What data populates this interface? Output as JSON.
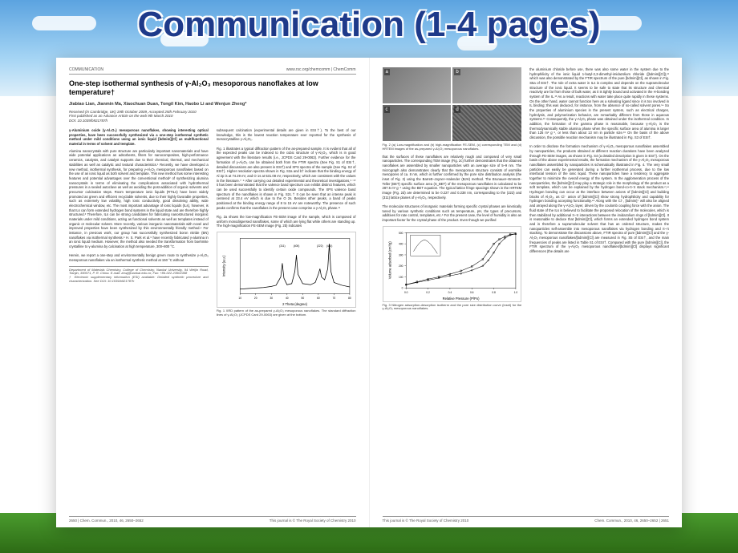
{
  "slide_title": "Communication (1-4 pages)",
  "header": {
    "left": "COMMUNICATION",
    "right": "www.rsc.org/chemcomm | ChemComm"
  },
  "paper": {
    "title": "One-step isothermal synthesis of γ-Al₂O₃ mesoporous nanoflakes at low temperature†",
    "authors": "Jiabiao Lian, Jianmin Ma, Xiaochuan Duan, Tongil Kim, Haobo Li and Wenjun Zheng*",
    "received": "Received (in Cambridge, UK) 19th October 2009, Accepted 25th February 2010\nFirst published as an Advance Article on the web 9th March 2010\nDOI: 10.1039/b921787h",
    "abstract": "γ-Aluminium oxide (γ-Al₂O₃) mesoporous nanoflakes, showing interesting optical properties, have been successfully synthesized via a one-step isothermal synthetic method under mild conditions using an ionic liquid [bdmim][Cl] as multifunctional material in terms of solvent and template.",
    "body_left_col1": "Alumina nanocrystals with pure structure are particularly important nanomaterials and have wide potential applications as adsorbents, filters for nanocomposites, high-performance ceramics, catalysts, and catalyst supports due to their chemical, thermal, and mechanical stabilities as well as catalytic and textural characteristics.¹ Recently, we have developed a new method, isothermal synthesis, for preparing γ-Al₂O₃ mesoporous nanoflakes based on the use of an ionic liquid as both solvent and template. This new method has some interesting features and potential advantages over the conventional method² of synthesizing alumina nanocrystals in terms of eliminating the complications associated with hydrothermal pressures in a sealed autoclave as well as avoiding the post-addition of organic solvents and precursor calcination steps. Room temperature ionic liquids (RTILs) have been widely promoted as green and efficient recyclable solvents, due to their highly favorable properties, such as extremely low volatility, high ionic conductivity, good dissolving ability, wide electrochemical window, etc. The most important advantage of ionic liquids (ILs), however, is that ILs can form extended hydrogen bond systems in the liquid state and are therefore highly structured.³ Therefore, ILs can be strong candidates for fabricating nanostructured inorganic materials under mild conditions, acting as functional solvents as well as templates instead of organic or molecular solvent. More recently, various inorganic nanomaterials with novel and improved properties have been synthesized by this environmentally friendly method.⁴ For instance, in previous work, our group has successfully synthesized boron nitride (BN) nanoflakes via isothermal synthesis.⁵ H. S. Park et al.⁶ have recently fabricated γ-alumina in an ionic liquid medium. However, the method also needed the transformation from boehmite crystalline to γ-alumina by calcination at high temperature, 300–800 °C.\n\nHerein, we report a one-step and environmentally benign green route to synthesize γ-Al₂O₃ mesoporous nanoflakes via an isothermal synthetic method at 150 °C without",
    "body_left_col2_top": "subsequent calcination (experimental details are given in ESI†). To the best of our knowledge, this is the lowest reaction temperature ever reported for the synthesis of mesocrystalline γ-Al₂O₃.\n\nFig. 1 illustrates a typical diffraction pattern of the as-prepared sample. It is evident that all of the expected peaks can be indexed to the cubic structure of γ-Al₂O₃, which is in good agreement with the literature results (i.e., JCPDS Card 29-0063). Further evidence for the formation of γ-Al₂O₃ can be obtained both from the FTIR spectra (See Fig. S1 of ESI†, detailed discussions are also present in ESI†) and XPS spectra of the sample (See Fig. S2 of ESI†). Higher resolution spectra shown in Fig. S2a and b† indicate that the binding energy of Al 2p is at 74.29 eV, and O 1s at 531.08 eV, respectively, which are consistent with the values in the literature.⁷⁻⁸ After carrying out detailed experimental and theoretical investigations,⁹⁻¹⁰ it has been demonstrated that the valence band spectrum can exhibit distinct features, which can be used successfully to identify certain oxide compounds. The XPS valence band spectrum of the nanoflakes is shown in Fig. S2c.† It can be seen that an intense peak is centered at 23.4 eV which is due to the O 2s. Besides other peaks, a band of peaks positioned at the binding energy range of 8 to 15 eV are noteworthy. The presence of such peaks confirms that the nanoflakes in the present case comprise a γ-Al₂O₃ phase.¹¹\n\nFig. 2a shows the low-magnification FE-SEM image of the sample, which is composed of uniform monodispersed nanoflakes, some of which are lying flat while others are standing up. The high-magnification FE-SEM image (Fig. 2b) indicates",
    "dept": "Department of Materials Chemistry, College of Chemistry, Nankai University, 94 Weijin Road, Tianjin, 300071, P. R. China. E-mail: zhwj@nankai.edu.cn; Fax: +86-022-23502458\n† Electronic supplementary information (ESI) available: Detailed synthetic procedure and characterization. See DOI: 10.1039/b921787h"
  },
  "right_page": {
    "fig2_caption": "Fig. 2 (a) Low-magnification and (b) high-magnification FE-SEM, (c) corresponding TEM and (d) HRTEM images of the as-prepared γ-Al₂O₃ mesoporous nanoflakes.",
    "body_col1": "that the surfaces of these nanoflakes are relatively rough and composed of very small nanoparticles. The corresponding TEM image (Fig. 2c) further demonstrates that the obtained nanoflakes are assembled by smaller nanoparticles with an average size of 5–9 nm. The micrograph also demonstrates clearly that the mesoporous structure consists of wormlike mesopores of ca. 8 nm, which is further confirmed by the pore size distribution analysis (the inset of Fig. 3) using the Barrett–Joyner–Halender (BJH) method. The Brunauer–Emmett–Teller (BET) specific surface area (S_BET) of the mesoporous nanoflakes is calculated to be 287.5 m² g⁻¹ using the BET equation. The typical lattice fringe spacings shown in the HRTEM image (Fig. 2d) are determined to be 0.227 and 0.238 nm, corresponding to the (222) and (311) lattice planes of γ-Al₂O₃, respectively.\n\nThe molecular structures of inorganic materials forming specific crystal phases are kinetically tuned by various synthetic conditions such as temperature, pH, the types of precursors, additives for rate control, templates, etc.⁶ For the present case, the level of humidity is also an important factor for the crystal phase of the product. Even though we purified",
    "body_col2": "the aluminium chloride before use, there was also some water in the system due to the hydrophilicity of the ionic liquid 1-butyl-2,3-dimethyl-imidazolium chloride ([bdmim][Cl]),¹² which was also demonstrated by the FTIR spectrum of the pure [bdmim][Cl], as shown in Fig. S5a of ESI†. The role of extra water in ILs is complex and depends on the supramolecular structure of the ionic liquid. It seems to be safe to state that its structure and chemical reactivity are far from those of bulk water, as it is tightly bound and activated in the H-bonding system of the IL.¹³ As a result, reactions with water take place quite rapidly in these systems. On the other hand, water cannot function here as a solvating ligand since it is too involved in IL binding; this was deduced, for instance, from the absence of so-called solvent pores.¹⁴ So the properties of aluminium species in the present system, such as electrical charges, hydrolysis, and polymerization behavior, are remarkably different from those in aqueous systems.¹⁵ Consequently, the γ-Al₂O₃ phase was obtained under the isothermal condition. In addition, the formation of the gamma phase is reasonable, because γ-Al₂O₃ is the thermodynamically stable alumina phase when the specific surface area of alumina is larger than 125 m² g⁻¹, or less than about 13 nm in particle size.¹⁶ On the basis of the above discussion, the possible reaction mechanism may be illustrated in Fig. S3 of ESI†.\n\nIn order to disclose the formation mechanism of γ-Al₂O₃ mesoporous nanoflakes assembled by nanoparticles, the products obtained at different reaction durations have been analyzed through FE-SEM images, as shown in Fig. S4 (a detailed description is given in ESI†). On the basis of the above experimental results, the formation mechanism of the γ-Al₂O₃ mesoporous nanoflakes assembled by nanoparticles is schematically illustrated in Fig. 4. The very small particles can easily be generated during a further isothermal process, due to the low interfacial tension of the ionic liquid. These nanoparticles have a tendency to aggregate together to minimize the overall energy of the system. In the agglomeration process of the nanoparticles, the [bdmim][Cl] may play a strategic role in the morphology of the product as a soft template, which can be explained by the hydrogen bond-co-π-π stack mechanism.²,¹⁴ Hydrogen bonding can occur at the interface between anions of [bdmim][Cl] and building blocks of Al₂O₃, as Cl⁻ anion of [bdmim][Cl] show strong hydrophilicity and capability for hydrogen bonding accepting functionality.⁴⁵ Along with the Cl⁻, [bdmim]⁺ will also be aligned and arrayed along the γ-Al₂O₃ layer, driven by the coulomb coupling force with the anion. The fluid state of the ILs is believed to facilitate the proposed relocation of the molecules, which is then stabilized by additional π–π interactions between the imidazolium rings of [bdmim][Cl]. It is reasonable to deduce that [bdmim][Cl], which forms an extended hydrogen bond system and is therefore a supramolecular solvent that has an ordered structure, makes the nanoparticles self-assemble into mesoporous nanoflakes via hydrogen bonding and π–π stacking. To demonstrate the discussions above, FTIR spectra of pure [bdmim][Cl] and the γ-Al₂O₃ mesoporous nanoflakes/[bdmim][Cl] are measured in Fig. S5 of ESI†, and the main frequencies of peaks are listed in Table S1 of ESI†. Compared with the pure [bdmim][Cl], the FTIR spectrum of the γ-Al₂O₃ mesoporous nanoflakes/[bdmim][Cl] displays significant differences (the details are"
  },
  "footer": {
    "left_page_left": "2650 | Chem. Commun., 2010, 46, 2650–2652",
    "left_page_right": "This journal is © The Royal Society of Chemistry 2010",
    "right_page_left": "This journal is © The Royal Society of Chemistry 2010",
    "right_page_right": "Chem. Commun., 2010, 46, 2650–2652 | 2651"
  },
  "xrd_chart": {
    "type": "line",
    "title": "",
    "xlabel": "2 Theta (degree)",
    "ylabel": "Intensity (a.u.)",
    "xlim": [
      10,
      80
    ],
    "ylim": [
      0,
      100
    ],
    "xtick_step": 10,
    "line_color": "#000000",
    "background_color": "#ffffff",
    "peaks": [
      {
        "x": 37,
        "label": "(311)"
      },
      {
        "x": 46,
        "label": "(400)"
      },
      {
        "x": 61,
        "label": "(222)"
      },
      {
        "x": 67,
        "label": "(440)"
      }
    ],
    "data_x": [
      10,
      15,
      20,
      25,
      30,
      33,
      36,
      37,
      38,
      40,
      43,
      45,
      46,
      47,
      50,
      55,
      58,
      60,
      61,
      62,
      64,
      66,
      67,
      68,
      70,
      75,
      80
    ],
    "data_y": [
      8,
      9,
      10,
      11,
      13,
      15,
      30,
      55,
      28,
      16,
      18,
      40,
      70,
      35,
      18,
      16,
      20,
      35,
      45,
      30,
      25,
      45,
      90,
      40,
      20,
      15,
      12
    ],
    "caption": "Fig. 1 XRD pattern of the as-prepared γ-Al₂O₃ mesoporous nanoflakes. The standard diffraction lines of γ-Al₂O₃ (JCPDS Card 29-0063) are given at the bottom."
  },
  "isotherm_chart": {
    "type": "line",
    "xlabel": "Relative Pressure (P/Po)",
    "ylabel": "Volume adsorbed (cm³/g)",
    "xlim": [
      0,
      1
    ],
    "ylim": [
      0,
      500
    ],
    "line_color": "#000000",
    "background_color": "#ffffff",
    "data_x": [
      0,
      0.1,
      0.2,
      0.3,
      0.4,
      0.5,
      0.6,
      0.7,
      0.75,
      0.8,
      0.85,
      0.9,
      0.95,
      1.0
    ],
    "data_y_ads": [
      30,
      50,
      70,
      90,
      110,
      130,
      160,
      200,
      250,
      320,
      400,
      450,
      480,
      490
    ],
    "data_y_des": [
      30,
      55,
      80,
      100,
      125,
      155,
      195,
      260,
      330,
      400,
      440,
      465,
      485,
      490
    ],
    "caption": "Fig. 3 Nitrogen adsorption-desorption isotherm and the pore size distribution curve (inset) for the γ-Al₂O₃ mesoporous nanoflakes."
  },
  "fig_labels": [
    "a",
    "b",
    "c",
    "d"
  ]
}
